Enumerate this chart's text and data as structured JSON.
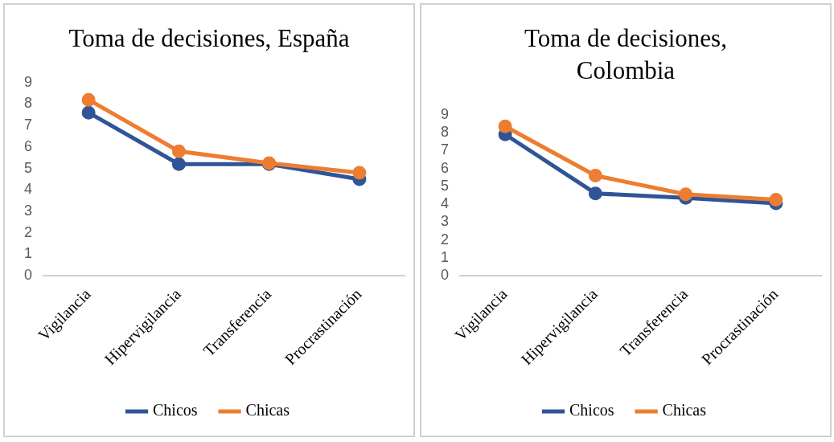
{
  "chart_data": [
    {
      "type": "line",
      "title": "Toma de decisiones, España",
      "categories": [
        "Vigilancia",
        "Hipervigilancia",
        "Transferencia",
        "Procrastinación"
      ],
      "series": [
        {
          "name": "Chicos",
          "color": "#2f5597",
          "values": [
            7.6,
            5.2,
            5.2,
            4.5
          ]
        },
        {
          "name": "Chicas",
          "color": "#ed7d31",
          "values": [
            8.2,
            5.8,
            5.25,
            4.8
          ]
        }
      ],
      "ylim": [
        0,
        9
      ],
      "yticks": [
        0,
        1,
        2,
        3,
        4,
        5,
        6,
        7,
        8,
        9
      ],
      "legend": "bottom",
      "marker": "circle",
      "line_style": "solid"
    },
    {
      "type": "line",
      "title": "Toma de decisiones, Colombia",
      "categories": [
        "Vigilancia",
        "Hipervigilancia",
        "Transferencia",
        "Procrastinación"
      ],
      "series": [
        {
          "name": "Chicos",
          "color": "#2f5597",
          "values": [
            7.9,
            4.6,
            4.35,
            4.05
          ]
        },
        {
          "name": "Chicas",
          "color": "#ed7d31",
          "values": [
            8.35,
            5.6,
            4.55,
            4.25
          ]
        }
      ],
      "ylim": [
        0,
        9
      ],
      "yticks": [
        0,
        1,
        2,
        3,
        4,
        5,
        6,
        7,
        8,
        9
      ],
      "legend": "bottom",
      "marker": "circle",
      "line_style": "solid"
    }
  ]
}
